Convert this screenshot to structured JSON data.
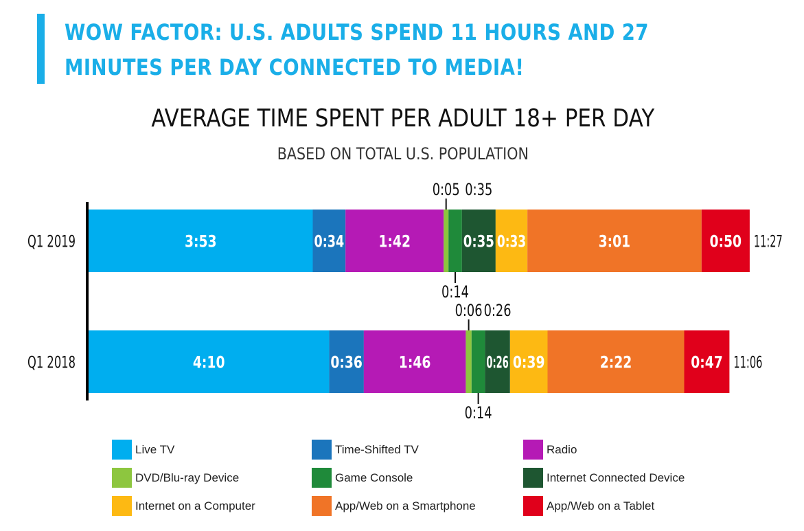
{
  "header": {
    "headline": "WOW FACTOR: U.S. ADULTS SPEND 11 HOURS AND 27 MINUTES PER DAY CONNECTED TO MEDIA!"
  },
  "colors": {
    "accent": "#1aaee8",
    "live_tv": "#00aeef",
    "time_shifted_tv": "#1b75bc",
    "radio": "#b51ab5",
    "dvd": "#8dc63f",
    "game_console": "#1f8a3a",
    "internet_connected_device": "#1e5631",
    "internet_computer": "#fdb913",
    "smartphone": "#f07427",
    "tablet": "#e0001b"
  },
  "chart_data": {
    "type": "bar",
    "orientation": "horizontal",
    "stacked": true,
    "title": "AVERAGE TIME SPENT PER ADULT 18+ PER DAY",
    "subtitle": "BASED ON TOTAL U.S. POPULATION",
    "unit": "h:mm",
    "categories": [
      "Q1 2019",
      "Q1 2018"
    ],
    "series": [
      {
        "name": "Live TV",
        "color": "#00aeef",
        "values": [
          "3:53",
          "4:10"
        ]
      },
      {
        "name": "Time-Shifted TV",
        "color": "#1b75bc",
        "values": [
          "0:34",
          "0:36"
        ]
      },
      {
        "name": "Radio",
        "color": "#b51ab5",
        "values": [
          "1:42",
          "1:46"
        ]
      },
      {
        "name": "DVD/Blu-ray Device",
        "color": "#8dc63f",
        "values": [
          "0:05",
          "0:06"
        ]
      },
      {
        "name": "Game Console",
        "color": "#1f8a3a",
        "values": [
          "0:14",
          "0:14"
        ]
      },
      {
        "name": "Internet Connected Device",
        "color": "#1e5631",
        "values": [
          "0:35",
          "0:26"
        ]
      },
      {
        "name": "Internet on a Computer",
        "color": "#fdb913",
        "values": [
          "0:33",
          "0:39"
        ]
      },
      {
        "name": "App/Web on a Smartphone",
        "color": "#f07427",
        "values": [
          "3:01",
          "2:22"
        ]
      },
      {
        "name": "App/Web on a Tablet",
        "color": "#e0001b",
        "values": [
          "0:50",
          "0:47"
        ]
      }
    ],
    "totals": [
      "11:27",
      "11:06"
    ],
    "legend_position": "bottom",
    "grid": false
  }
}
